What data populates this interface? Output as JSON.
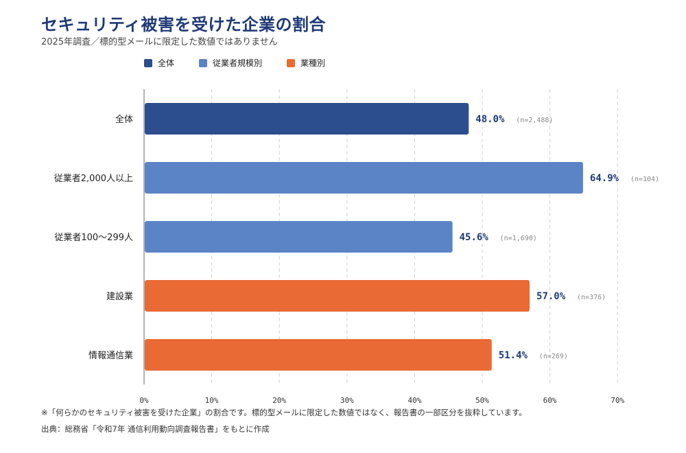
{
  "title": "セキュリティ被害を受けた企業の割合",
  "subtitle": "2025年調査／標的型メールに限定した数値ではありません",
  "legend": [
    {
      "label": "全体",
      "color": "#2d4e8e"
    },
    {
      "label": "従業者規模別",
      "color": "#5b84c7"
    },
    {
      "label": "業種別",
      "color": "#e96a35"
    }
  ],
  "footnote": "※「何らかのセキュリティ被害を受けた企業」の割合です。標的型メールに限定した数値ではなく、報告書の一部区分を抜粋しています。",
  "source": "出典：総務省「令和7年 通信利用動向調査報告書」をもとに作成",
  "chart_data": {
    "type": "bar",
    "orientation": "horizontal",
    "categories": [
      "全体",
      "従業者2,000人以上",
      "従業者100～299人",
      "建設業",
      "情報通信業"
    ],
    "values": [
      48.0,
      64.9,
      45.6,
      57.0,
      51.4
    ],
    "value_labels": [
      "48.0%",
      "64.9%",
      "45.6%",
      "57.0%",
      "51.4%"
    ],
    "sample_labels": [
      "(n=2,488)",
      "(n=104)",
      "(n=1,690)",
      "(n=376)",
      "(n=269)"
    ],
    "groups": [
      "全体",
      "従業者規模別",
      "従業者規模別",
      "業種別",
      "業種別"
    ],
    "group_colors": {
      "全体": "#2d4e8e",
      "従業者規模別": "#5b84c7",
      "業種別": "#e96a35"
    },
    "xlim": [
      0,
      70
    ],
    "xticks": [
      "0%",
      "10%",
      "20%",
      "30%",
      "40%",
      "50%",
      "60%",
      "70%"
    ],
    "grid": true,
    "legend_position": "top-left"
  }
}
